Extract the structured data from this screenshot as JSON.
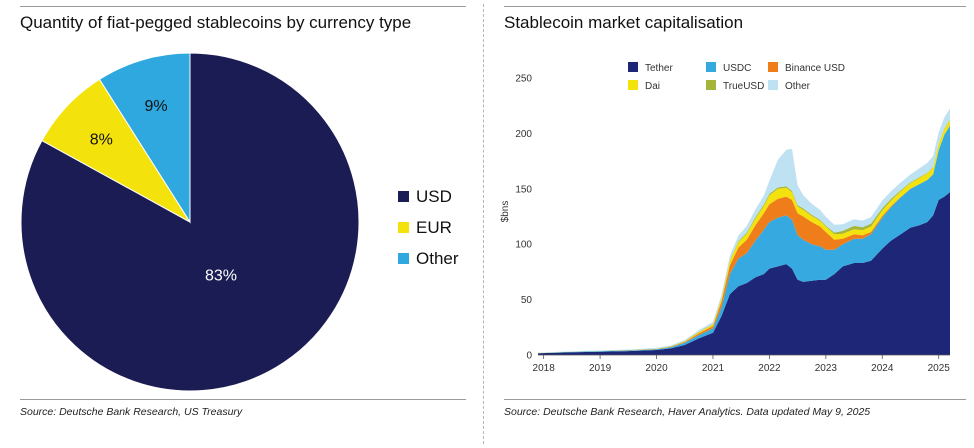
{
  "left": {
    "title": "Quantity of fiat-pegged stablecoins by currency type",
    "source": "Source: Deutsche Bank Research, US Treasury"
  },
  "right": {
    "title": "Stablecoin market capitalisation",
    "source": "Source: Deutsche Bank Research, Haver Analytics. Data updated May 9, 2025"
  },
  "chart_data": [
    {
      "type": "pie",
      "title": "Quantity of fiat-pegged stablecoins by currency type",
      "slices": [
        {
          "label": "USD",
          "value": 83,
          "display": "83%",
          "color": "#1c1c54"
        },
        {
          "label": "EUR",
          "value": 8,
          "display": "8%",
          "color": "#f4e20c"
        },
        {
          "label": "Other",
          "value": 9,
          "display": "9%",
          "color": "#2ea8de"
        }
      ],
      "legend_position": "right"
    },
    {
      "type": "area",
      "stacked": true,
      "title": "Stablecoin market capitalisation",
      "ylabel": "$bns",
      "ylim": [
        0,
        250
      ],
      "yticks": [
        0,
        50,
        100,
        150,
        200,
        250
      ],
      "xlim": [
        2017.9,
        2025.2
      ],
      "xticks": [
        2018,
        2019,
        2020,
        2021,
        2022,
        2023,
        2024,
        2025
      ],
      "legend_position": "top-center",
      "grid": false,
      "x": [
        2017.9,
        2018.5,
        2019.0,
        2019.5,
        2020.0,
        2020.25,
        2020.5,
        2020.75,
        2021.0,
        2021.15,
        2021.3,
        2021.45,
        2021.6,
        2021.75,
        2021.9,
        2022.0,
        2022.15,
        2022.3,
        2022.4,
        2022.5,
        2022.6,
        2022.75,
        2022.9,
        2023.0,
        2023.15,
        2023.3,
        2023.5,
        2023.65,
        2023.8,
        2024.0,
        2024.15,
        2024.3,
        2024.5,
        2024.65,
        2024.8,
        2024.9,
        2025.0,
        2025.1,
        2025.2
      ],
      "series": [
        {
          "name": "Tether",
          "color": "#1e2677",
          "values": [
            1.5,
            2.5,
            3,
            3.5,
            4.5,
            6,
            9,
            15,
            20,
            35,
            55,
            62,
            65,
            70,
            73,
            78,
            80,
            82,
            78,
            68,
            66,
            67,
            68,
            68,
            73,
            80,
            83,
            83,
            85,
            96,
            103,
            108,
            115,
            117,
            120,
            126,
            140,
            143,
            147
          ]
        },
        {
          "name": "USDC",
          "color": "#36a9e1",
          "values": [
            0.2,
            0.3,
            0.5,
            0.6,
            0.7,
            1,
            2,
            3,
            4,
            8,
            18,
            25,
            27,
            33,
            40,
            42,
            44,
            44,
            44,
            40,
            38,
            33,
            30,
            27,
            22,
            20,
            22,
            22,
            24,
            28,
            30,
            33,
            35,
            37,
            38,
            37,
            45,
            56,
            60
          ]
        },
        {
          "name": "Binance USD",
          "color": "#ef7d1a",
          "values": [
            0,
            0,
            0,
            0.1,
            0.2,
            0.3,
            0.7,
            1.5,
            2.2,
            5,
            8,
            10,
            12,
            14,
            15,
            16,
            17,
            17,
            18,
            20,
            21,
            20,
            18,
            16,
            9,
            5,
            4,
            3,
            2,
            1.5,
            1,
            0.5,
            0.2,
            0.1,
            0,
            0,
            0,
            0,
            0
          ]
        },
        {
          "name": "Dai",
          "color": "#f4e20c",
          "values": [
            0.1,
            0.1,
            0.1,
            0.1,
            0.2,
            0.3,
            0.5,
            1,
            1.3,
            2.5,
            4,
            5,
            5.5,
            6,
            6.5,
            8,
            9,
            8,
            7,
            6,
            6,
            5.5,
            5,
            5,
            5,
            4.5,
            4.5,
            4.5,
            5,
            5,
            5,
            5,
            5,
            5.5,
            6,
            6,
            5.5,
            5,
            5
          ]
        },
        {
          "name": "TrueUSD",
          "color": "#a4b53a",
          "values": [
            0.1,
            0.1,
            0.1,
            0.2,
            0.2,
            0.3,
            0.3,
            0.4,
            0.5,
            0.6,
            0.7,
            0.8,
            1,
            1.2,
            1.3,
            1.4,
            1.3,
            1.2,
            1.1,
            1.1,
            1.2,
            1,
            0.9,
            0.8,
            1.5,
            2.5,
            3,
            2.8,
            2.5,
            2,
            1.5,
            1,
            0.8,
            0.6,
            0.5,
            0.5,
            0.5,
            0.5,
            0.5
          ]
        },
        {
          "name": "Other",
          "color": "#bfe2f3",
          "values": [
            0.2,
            0.3,
            0.4,
            0.5,
            0.6,
            0.7,
            1,
            1.5,
            2,
            3,
            4,
            5,
            6,
            7,
            8,
            12,
            25,
            33,
            38,
            18,
            12,
            10,
            9,
            8,
            7,
            6,
            6,
            6,
            6,
            7,
            7,
            7,
            7,
            8,
            9,
            10,
            10,
            10,
            10
          ]
        }
      ]
    }
  ]
}
